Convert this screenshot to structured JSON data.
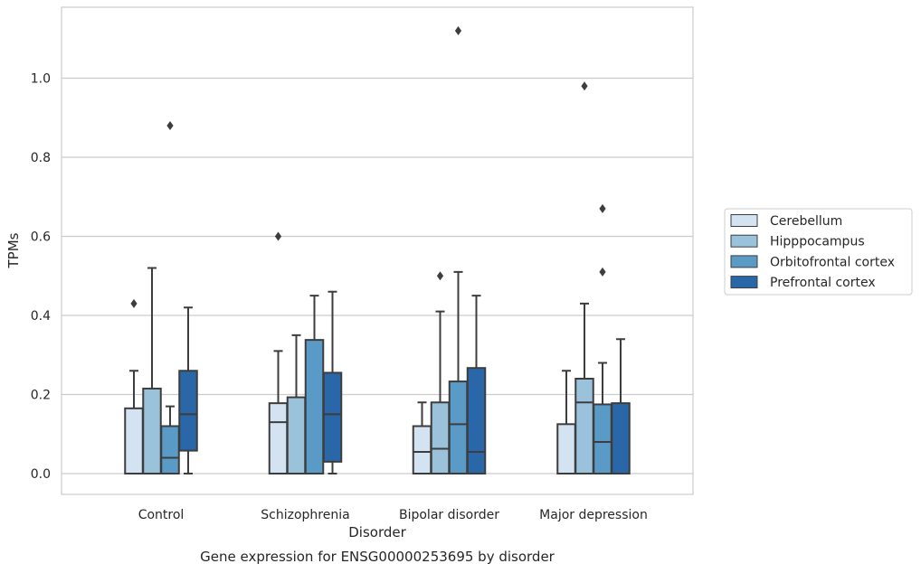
{
  "chart_data": {
    "type": "box",
    "title": "",
    "caption": "Gene expression for ENSG00000253695 by disorder",
    "xlabel": "Disorder",
    "ylabel": "TPMs",
    "ylim": [
      -0.055,
      1.175
    ],
    "yticks": [
      0.0,
      0.2,
      0.4,
      0.6,
      0.8,
      1.0
    ],
    "ytick_labels": [
      "0.0",
      "0.2",
      "0.4",
      "0.6",
      "0.8",
      "1.0"
    ],
    "grid": "horizontal",
    "legend_position": "right",
    "categories": [
      "Control",
      "Schizophrenia",
      "Bipolar disorder",
      "Major depression"
    ],
    "series": [
      {
        "name": "Cerebellum",
        "color": "#d4e3f1",
        "boxes": [
          {
            "whislo": 0.0,
            "q1": 0.0,
            "med": 0.0,
            "q3": 0.165,
            "whishi": 0.26,
            "fliers": [
              0.43
            ]
          },
          {
            "whislo": 0.0,
            "q1": 0.0,
            "med": 0.13,
            "q3": 0.178,
            "whishi": 0.31,
            "fliers": [
              0.6
            ]
          },
          {
            "whislo": 0.0,
            "q1": 0.0,
            "med": 0.055,
            "q3": 0.12,
            "whishi": 0.18,
            "fliers": []
          },
          {
            "whislo": 0.0,
            "q1": 0.0,
            "med": 0.0,
            "q3": 0.125,
            "whishi": 0.26,
            "fliers": []
          }
        ]
      },
      {
        "name": "Hipppocampus",
        "color": "#9ac2db",
        "boxes": [
          {
            "whislo": 0.0,
            "q1": 0.0,
            "med": 0.0,
            "q3": 0.215,
            "whishi": 0.52,
            "fliers": []
          },
          {
            "whislo": 0.0,
            "q1": 0.0,
            "med": 0.0,
            "q3": 0.193,
            "whishi": 0.35,
            "fliers": []
          },
          {
            "whislo": 0.0,
            "q1": 0.0,
            "med": 0.063,
            "q3": 0.18,
            "whishi": 0.41,
            "fliers": [
              0.5
            ]
          },
          {
            "whislo": 0.0,
            "q1": 0.0,
            "med": 0.18,
            "q3": 0.24,
            "whishi": 0.43,
            "fliers": [
              0.98
            ]
          }
        ]
      },
      {
        "name": "Orbitofrontal cortex",
        "color": "#5a9ac6",
        "boxes": [
          {
            "whislo": 0.0,
            "q1": 0.0,
            "med": 0.04,
            "q3": 0.12,
            "whishi": 0.17,
            "fliers": [
              0.88
            ]
          },
          {
            "whislo": 0.0,
            "q1": 0.0,
            "med": 0.0,
            "q3": 0.338,
            "whishi": 0.45,
            "fliers": []
          },
          {
            "whislo": 0.0,
            "q1": 0.0,
            "med": 0.125,
            "q3": 0.233,
            "whishi": 0.51,
            "fliers": [
              1.12
            ]
          },
          {
            "whislo": 0.0,
            "q1": 0.0,
            "med": 0.08,
            "q3": 0.175,
            "whishi": 0.28,
            "fliers": [
              0.51,
              0.67
            ]
          }
        ]
      },
      {
        "name": "Prefrontal cortex",
        "color": "#2a67a8",
        "boxes": [
          {
            "whislo": 0.0,
            "q1": 0.058,
            "med": 0.15,
            "q3": 0.26,
            "whishi": 0.42,
            "fliers": []
          },
          {
            "whislo": 0.0,
            "q1": 0.03,
            "med": 0.15,
            "q3": 0.255,
            "whishi": 0.46,
            "fliers": []
          },
          {
            "whislo": 0.0,
            "q1": 0.0,
            "med": 0.055,
            "q3": 0.267,
            "whishi": 0.45,
            "fliers": []
          },
          {
            "whislo": 0.0,
            "q1": 0.0,
            "med": 0.0,
            "q3": 0.178,
            "whishi": 0.34,
            "fliers": []
          }
        ]
      }
    ]
  }
}
